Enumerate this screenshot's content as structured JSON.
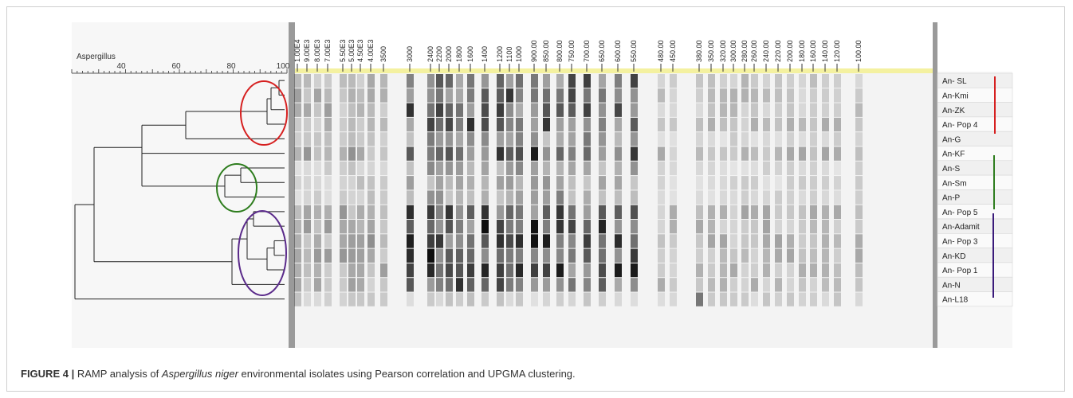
{
  "dendrogram": {
    "title": "Aspergillus",
    "scale_ticks": [
      "40",
      "60",
      "80",
      "100"
    ]
  },
  "size_markers": [
    "1.00E4",
    "9.00E3",
    "8.00E3",
    "7.00E3",
    "5.50E3",
    "5.00E3",
    "4.50E3",
    "4.00E3",
    "3500",
    "3000",
    "2400",
    "2200",
    "2000",
    "1800",
    "1600",
    "1400",
    "1200",
    "1100",
    "1000",
    "900.00",
    "850.00",
    "800.00",
    "750.00",
    "700.00",
    "650.00",
    "600.00",
    "550.00",
    "480.00",
    "450.00",
    "380.00",
    "350.00",
    "320.00",
    "300.00",
    "280.00",
    "260.00",
    "240.00",
    "220.00",
    "200.00",
    "180.00",
    "160.00",
    "140.00",
    "120.00",
    "100.00"
  ],
  "lanes": [
    "An- SL",
    "An-Kmi",
    "An-ZK",
    "An- Pop 4",
    "An-G",
    "An-KF",
    "An-S",
    "An-Sm",
    "An-P",
    "An- Pop 5",
    "An-Adamit",
    "An- Pop 3",
    "An-KD",
    "An- Pop 1",
    "An-N",
    "An-L18"
  ],
  "caption": {
    "label": "FIGURE 4 |",
    "text_before": "RAMP analysis of",
    "italic": "Aspergillus niger",
    "text_after": "environmental isolates using Pearson correlation and UPGMA clustering."
  }
}
